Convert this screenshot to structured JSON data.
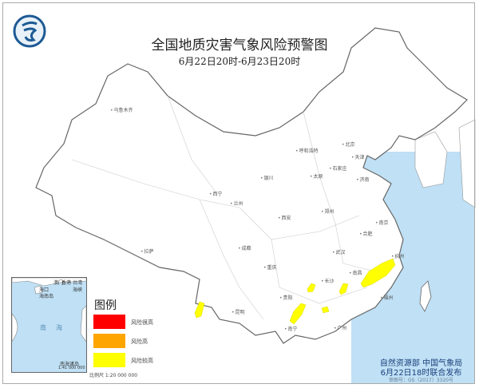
{
  "title": "全国地质灾害气象风险预警图",
  "subtitle": "6月22日20时-6月23日20时",
  "legend": {
    "title": "图例",
    "items": [
      {
        "label": "风险很高",
        "color": "#ff0000"
      },
      {
        "label": "风险高",
        "color": "#ffa500"
      },
      {
        "label": "风险较高",
        "color": "#ffff00"
      }
    ],
    "scale": "比例尺   1:20 000 000"
  },
  "inset": {
    "title": "南海诸岛",
    "scale": "1:41 000 000",
    "labels": [
      "澳门",
      "香港",
      "台湾海峡",
      "海口",
      "海南岛",
      "南",
      "海"
    ]
  },
  "footer": {
    "publisher": "自然资源部  中国气象局",
    "issued": "6月22日18时联合发布",
    "approval": "审图号：GS（2017）3320号"
  },
  "colors": {
    "sea": "#bfe0f5",
    "risk_high_relative": "#ffff00"
  },
  "cities": [
    "乌鲁木齐",
    "拉萨",
    "西宁",
    "兰州",
    "银川",
    "呼和浩特",
    "北京",
    "天津",
    "石家庄",
    "太原",
    "济南",
    "郑州",
    "西安",
    "成都",
    "重庆",
    "武汉",
    "长沙",
    "南昌",
    "杭州",
    "福州",
    "贵阳",
    "昆明",
    "南宁",
    "广州",
    "合肥",
    "南京"
  ],
  "risk_areas": [
    {
      "region": "浙江-江西交界",
      "level": "风险较高"
    },
    {
      "region": "江西西部",
      "level": "风险较高"
    },
    {
      "region": "湖南西部",
      "level": "风险较高"
    },
    {
      "region": "贵州南部-广西北部",
      "level": "风险较高"
    },
    {
      "region": "广西东北部",
      "level": "风险较高"
    },
    {
      "region": "云南西部",
      "level": "风险较高"
    }
  ]
}
